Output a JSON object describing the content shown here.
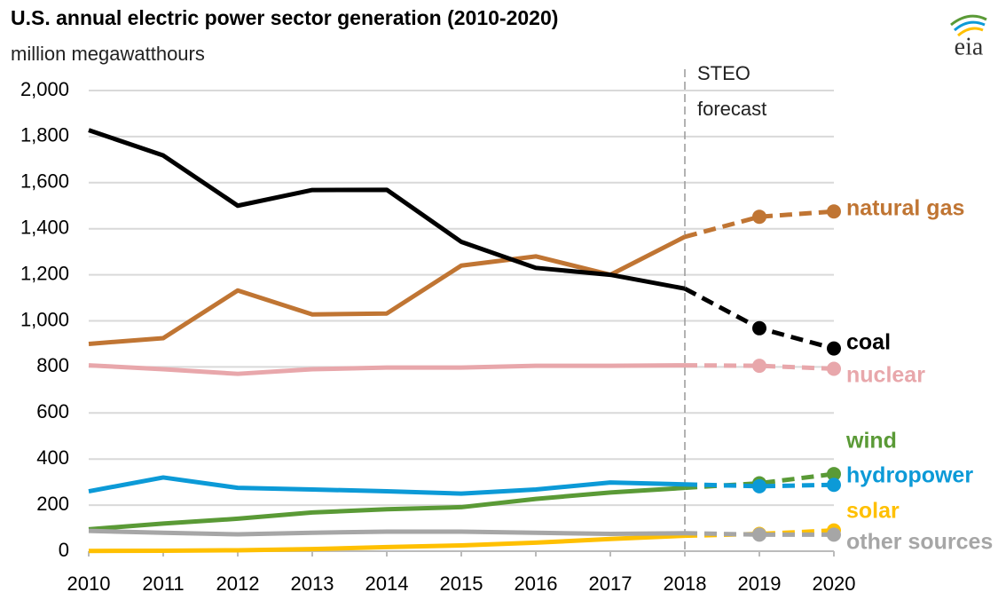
{
  "chart_data": {
    "type": "line",
    "title": "U.S. annual electric power sector generation (2010-2020)",
    "subtitle": "million megawatthours",
    "logo": "eia",
    "annotation": [
      "STEO",
      "forecast"
    ],
    "forecast_x": 2018,
    "x": [
      2010,
      2011,
      2012,
      2013,
      2014,
      2015,
      2016,
      2017,
      2018,
      2019,
      2020
    ],
    "xlim": [
      2010,
      2020
    ],
    "xticks": [
      2010,
      2011,
      2012,
      2013,
      2014,
      2015,
      2016,
      2017,
      2018,
      2019,
      2020
    ],
    "ylim": [
      0,
      2000
    ],
    "yticks": [
      0,
      200,
      400,
      600,
      800,
      {
        "value": 1000,
        "label": "1,000"
      },
      {
        "value": 1200,
        "label": "1,200"
      },
      {
        "value": 1400,
        "label": "1,400"
      },
      {
        "value": 1600,
        "label": "1,600"
      },
      {
        "value": 1800,
        "label": "1,800"
      },
      {
        "value": 2000,
        "label": "2,000"
      }
    ],
    "grid": true,
    "series": [
      {
        "name": "natural gas",
        "color": "#c07533",
        "values": [
          900,
          925,
          1132,
          1028,
          1032,
          1240,
          1280,
          1200,
          1365,
          1452,
          1475
        ]
      },
      {
        "name": "coal",
        "color": "#000000",
        "values": [
          1828,
          1718,
          1500,
          1568,
          1569,
          1343,
          1230,
          1200,
          1140,
          968,
          880
        ]
      },
      {
        "name": "nuclear",
        "color": "#e8a7ab",
        "values": [
          807,
          790,
          770,
          790,
          797,
          797,
          805,
          805,
          807,
          805,
          792
        ]
      },
      {
        "name": "wind",
        "color": "#5a9a36",
        "values": [
          95,
          120,
          141,
          168,
          182,
          191,
          227,
          255,
          275,
          295,
          335
        ]
      },
      {
        "name": "hydropower",
        "color": "#0c9ad7",
        "values": [
          260,
          320,
          275,
          268,
          260,
          250,
          268,
          298,
          290,
          282,
          288
        ]
      },
      {
        "name": "solar",
        "color": "#ffc000",
        "values": [
          1,
          2,
          4,
          9,
          18,
          25,
          37,
          53,
          67,
          75,
          90
        ]
      },
      {
        "name": "other sources",
        "color": "#a6a6a6",
        "values": [
          88,
          80,
          73,
          80,
          85,
          85,
          80,
          75,
          78,
          72,
          72
        ]
      }
    ]
  }
}
